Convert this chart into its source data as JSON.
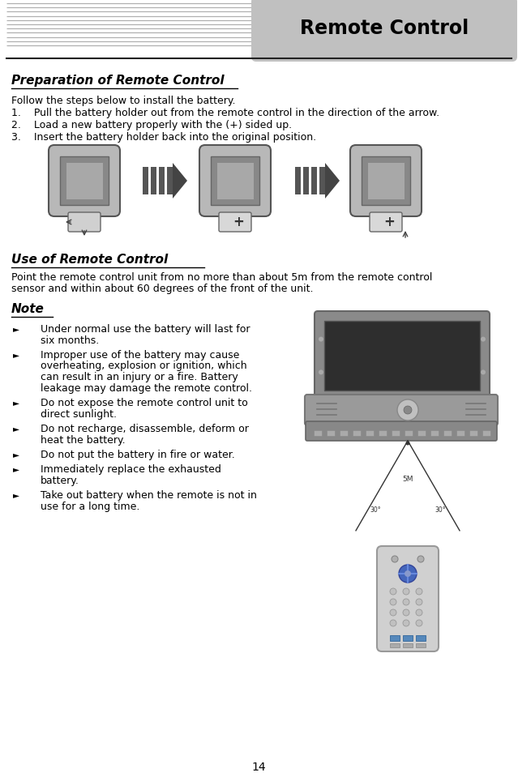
{
  "title": "Remote Control",
  "page_number": "14",
  "bg_color": "#ffffff",
  "header_bg_color": "#c0c0c0",
  "stripe_color": "#b0b0b0",
  "divider_color": "#222222",
  "section1_title": "Preparation of Remote Control",
  "section1_lines": [
    "Follow the steps below to install the battery.",
    "1.    Pull the battery holder out from the remote control in the direction of the arrow.",
    "2.    Load a new battery properly with the (+) sided up.",
    "3.    Insert the battery holder back into the original position."
  ],
  "section2_title": "Use of Remote Control",
  "section2_line1": "Point the remote control unit from no more than about 5m from the remote control",
  "section2_line2": "sensor and within about 60 degrees of the front of the unit.",
  "note_title": "Note",
  "note_bullets": [
    "Under normal use the battery will last for\nsix months.",
    "Improper use of the battery may cause\noverheating, explosion or ignition, which\ncan result in an injury or a fire. Battery\nleakage may damage the remote control.",
    "Do not expose the remote control unit to\ndirect sunlight.",
    "Do not recharge, disassemble, deform or\nheat the battery.",
    "Do not put the battery in fire or water.",
    "Immediately replace the exhausted\nbattery.",
    "Take out battery when the remote is not in\nuse for a long time."
  ]
}
